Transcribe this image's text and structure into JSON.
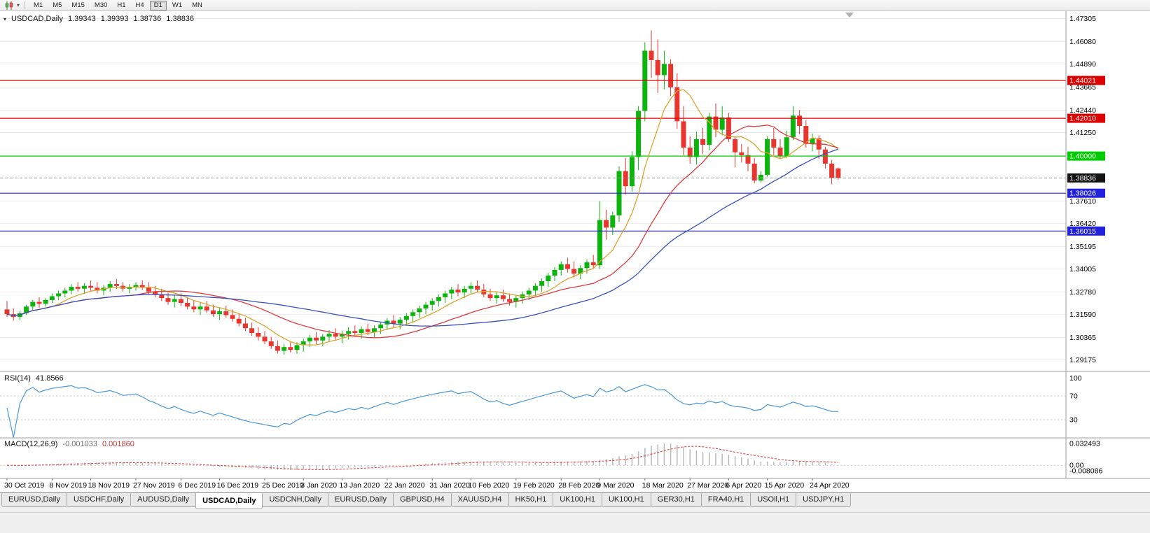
{
  "toolbar": {
    "timeframes": [
      "M1",
      "M5",
      "M15",
      "M30",
      "H1",
      "H4",
      "D1",
      "W1",
      "MN"
    ],
    "active": "D1"
  },
  "chart_header": {
    "symbol_timeframe": "USDCAD,Daily",
    "open": "1.39343",
    "high": "1.39393",
    "low": "1.38736",
    "close": "1.38836"
  },
  "chart_data": {
    "type": "candlestick",
    "symbol": "USDCAD",
    "timeframe": "Daily",
    "ylim": [
      1.28555,
      1.477
    ],
    "colors": {
      "up": "#0db40d",
      "down": "#e8352e",
      "background": "#ffffff",
      "grid": "#ececec"
    },
    "price_ticks": [
      1.47305,
      1.4608,
      1.4489,
      1.43665,
      1.4244,
      1.4125,
      1.3761,
      1.3642,
      1.35195,
      1.34005,
      1.3278,
      1.3159,
      1.30365,
      1.29175
    ],
    "hlines": [
      {
        "price": 1.44021,
        "color": "#dd0000"
      },
      {
        "price": 1.4201,
        "color": "#dd0000"
      },
      {
        "price": 1.4,
        "color": "#00cc00"
      },
      {
        "price": 1.38026,
        "color": "#2222dd"
      },
      {
        "price": 1.36015,
        "color": "#2222dd"
      }
    ],
    "current_price": {
      "price": 1.38836,
      "box_color": "#141414"
    },
    "moving_averages": [
      {
        "period": 8,
        "color": "#d9a62e"
      },
      {
        "period": 21,
        "color": "#dd3b3b"
      },
      {
        "period": 40,
        "color": "#3850c0"
      }
    ],
    "date_labels": [
      [
        0,
        "30 Oct 2019"
      ],
      [
        7,
        "8 Nov 2019"
      ],
      [
        13,
        "18 Nov 2019"
      ],
      [
        20,
        "27 Nov 2019"
      ],
      [
        27,
        "6 Dec 2019"
      ],
      [
        33,
        "16 Dec 2019"
      ],
      [
        40,
        "25 Dec 2019"
      ],
      [
        46,
        "3 Jan 2020"
      ],
      [
        52,
        "13 Jan 2020"
      ],
      [
        59,
        "22 Jan 2020"
      ],
      [
        66,
        "31 Jan 2020"
      ],
      [
        72,
        "10 Feb 2020"
      ],
      [
        79,
        "19 Feb 2020"
      ],
      [
        86,
        "28 Feb 2020"
      ],
      [
        92,
        "9 Mar 2020"
      ],
      [
        99,
        "18 Mar 2020"
      ],
      [
        106,
        "27 Mar 2020"
      ],
      [
        112,
        "6 Apr 2020"
      ],
      [
        118,
        "15 Apr 2020"
      ],
      [
        125,
        "24 Apr 2020"
      ]
    ],
    "candles": [
      [
        1.3185,
        1.323,
        1.3145,
        1.316
      ],
      [
        1.316,
        1.319,
        1.3125,
        1.3145
      ],
      [
        1.3145,
        1.3175,
        1.313,
        1.3165
      ],
      [
        1.3165,
        1.321,
        1.3155,
        1.32
      ],
      [
        1.32,
        1.3235,
        1.318,
        1.3225
      ],
      [
        1.3225,
        1.325,
        1.3195,
        1.3215
      ],
      [
        1.3215,
        1.3245,
        1.32,
        1.3235
      ],
      [
        1.3235,
        1.327,
        1.322,
        1.3255
      ],
      [
        1.3255,
        1.3285,
        1.3235,
        1.327
      ],
      [
        1.327,
        1.33,
        1.325,
        1.3285
      ],
      [
        1.3285,
        1.332,
        1.3265,
        1.3305
      ],
      [
        1.3305,
        1.333,
        1.328,
        1.3295
      ],
      [
        1.3295,
        1.3325,
        1.327,
        1.331
      ],
      [
        1.331,
        1.334,
        1.3285,
        1.33
      ],
      [
        1.33,
        1.333,
        1.327,
        1.3285
      ],
      [
        1.3285,
        1.3315,
        1.326,
        1.33
      ],
      [
        1.33,
        1.3335,
        1.328,
        1.332
      ],
      [
        1.332,
        1.3345,
        1.3295,
        1.331
      ],
      [
        1.331,
        1.333,
        1.328,
        1.3295
      ],
      [
        1.3295,
        1.332,
        1.327,
        1.3305
      ],
      [
        1.3305,
        1.333,
        1.3285,
        1.3315
      ],
      [
        1.3315,
        1.334,
        1.329,
        1.33
      ],
      [
        1.33,
        1.333,
        1.3265,
        1.328
      ],
      [
        1.328,
        1.331,
        1.325,
        1.3265
      ],
      [
        1.3265,
        1.3295,
        1.323,
        1.3245
      ],
      [
        1.3245,
        1.3275,
        1.321,
        1.3225
      ],
      [
        1.3225,
        1.326,
        1.3195,
        1.324
      ],
      [
        1.324,
        1.327,
        1.3205,
        1.322
      ],
      [
        1.322,
        1.325,
        1.3185,
        1.32
      ],
      [
        1.32,
        1.3235,
        1.317,
        1.3185
      ],
      [
        1.3185,
        1.322,
        1.3155,
        1.32
      ],
      [
        1.32,
        1.323,
        1.3165,
        1.318
      ],
      [
        1.318,
        1.321,
        1.3145,
        1.316
      ],
      [
        1.316,
        1.3195,
        1.313,
        1.3175
      ],
      [
        1.3175,
        1.3205,
        1.314,
        1.3155
      ],
      [
        1.3155,
        1.3185,
        1.312,
        1.3135
      ],
      [
        1.3135,
        1.3165,
        1.3095,
        1.311
      ],
      [
        1.311,
        1.314,
        1.307,
        1.3085
      ],
      [
        1.3085,
        1.3115,
        1.3045,
        1.306
      ],
      [
        1.306,
        1.309,
        1.302,
        1.304
      ],
      [
        1.304,
        1.307,
        1.3,
        1.3015
      ],
      [
        1.3015,
        1.304,
        1.2975,
        1.299
      ],
      [
        1.299,
        1.302,
        1.295,
        1.2965
      ],
      [
        1.2965,
        1.3,
        1.2945,
        1.2985
      ],
      [
        1.2985,
        1.3015,
        1.2955,
        1.297
      ],
      [
        1.297,
        1.301,
        1.295,
        1.2995
      ],
      [
        1.2995,
        1.303,
        1.296,
        1.3015
      ],
      [
        1.3015,
        1.305,
        1.2985,
        1.3035
      ],
      [
        1.3035,
        1.3065,
        1.3,
        1.302
      ],
      [
        1.302,
        1.3055,
        1.299,
        1.304
      ],
      [
        1.304,
        1.3075,
        1.301,
        1.3055
      ],
      [
        1.3055,
        1.3085,
        1.302,
        1.304
      ],
      [
        1.304,
        1.307,
        1.3005,
        1.3055
      ],
      [
        1.3055,
        1.309,
        1.3025,
        1.307
      ],
      [
        1.307,
        1.31,
        1.304,
        1.306
      ],
      [
        1.306,
        1.3095,
        1.303,
        1.308
      ],
      [
        1.308,
        1.311,
        1.305,
        1.3065
      ],
      [
        1.3065,
        1.31,
        1.3035,
        1.3085
      ],
      [
        1.3085,
        1.312,
        1.3055,
        1.3105
      ],
      [
        1.3105,
        1.314,
        1.3075,
        1.3125
      ],
      [
        1.3125,
        1.3155,
        1.309,
        1.311
      ],
      [
        1.311,
        1.3145,
        1.308,
        1.313
      ],
      [
        1.313,
        1.3165,
        1.31,
        1.315
      ],
      [
        1.315,
        1.3185,
        1.312,
        1.317
      ],
      [
        1.317,
        1.3205,
        1.314,
        1.319
      ],
      [
        1.319,
        1.3225,
        1.316,
        1.321
      ],
      [
        1.321,
        1.3245,
        1.318,
        1.323
      ],
      [
        1.323,
        1.3265,
        1.32,
        1.325
      ],
      [
        1.325,
        1.3285,
        1.322,
        1.327
      ],
      [
        1.327,
        1.3305,
        1.324,
        1.329
      ],
      [
        1.329,
        1.332,
        1.3255,
        1.3275
      ],
      [
        1.3275,
        1.331,
        1.3245,
        1.3295
      ],
      [
        1.3295,
        1.333,
        1.3265,
        1.331
      ],
      [
        1.331,
        1.334,
        1.3275,
        1.329
      ],
      [
        1.329,
        1.332,
        1.325,
        1.3265
      ],
      [
        1.3265,
        1.3295,
        1.323,
        1.3245
      ],
      [
        1.3245,
        1.328,
        1.3215,
        1.326
      ],
      [
        1.326,
        1.329,
        1.3225,
        1.324
      ],
      [
        1.324,
        1.327,
        1.3205,
        1.3225
      ],
      [
        1.3225,
        1.326,
        1.3195,
        1.3245
      ],
      [
        1.3245,
        1.328,
        1.3215,
        1.3265
      ],
      [
        1.3265,
        1.33,
        1.3235,
        1.3285
      ],
      [
        1.3285,
        1.3325,
        1.3255,
        1.331
      ],
      [
        1.331,
        1.335,
        1.328,
        1.3335
      ],
      [
        1.3335,
        1.338,
        1.3305,
        1.3365
      ],
      [
        1.3365,
        1.341,
        1.3335,
        1.3395
      ],
      [
        1.3395,
        1.344,
        1.3365,
        1.3425
      ],
      [
        1.3425,
        1.346,
        1.338,
        1.34
      ],
      [
        1.34,
        1.344,
        1.3355,
        1.3375
      ],
      [
        1.3375,
        1.342,
        1.3345,
        1.3405
      ],
      [
        1.3405,
        1.345,
        1.3375,
        1.3435
      ],
      [
        1.3435,
        1.3475,
        1.34,
        1.342
      ],
      [
        1.342,
        1.376,
        1.34,
        1.366
      ],
      [
        1.366,
        1.3715,
        1.3555,
        1.362
      ],
      [
        1.362,
        1.3705,
        1.358,
        1.3685
      ],
      [
        1.3685,
        1.3945,
        1.365,
        1.392
      ],
      [
        1.392,
        1.399,
        1.3795,
        1.384
      ],
      [
        1.384,
        1.4025,
        1.381,
        1.3995
      ],
      [
        1.3995,
        1.4265,
        1.3925,
        1.424
      ],
      [
        1.424,
        1.4605,
        1.4185,
        1.456
      ],
      [
        1.456,
        1.4668,
        1.4415,
        1.451
      ],
      [
        1.451,
        1.462,
        1.4335,
        1.443
      ],
      [
        1.443,
        1.456,
        1.4355,
        1.449
      ],
      [
        1.449,
        1.4515,
        1.432,
        1.4365
      ],
      [
        1.4365,
        1.444,
        1.4145,
        1.4185
      ],
      [
        1.4185,
        1.4265,
        1.4005,
        1.4045
      ],
      [
        1.4045,
        1.4105,
        1.396,
        1.3995
      ],
      [
        1.3995,
        1.413,
        1.3955,
        1.409
      ],
      [
        1.409,
        1.415,
        1.401,
        1.406
      ],
      [
        1.406,
        1.423,
        1.403,
        1.421
      ],
      [
        1.421,
        1.428,
        1.41,
        1.414
      ],
      [
        1.414,
        1.4265,
        1.411,
        1.4205
      ],
      [
        1.4205,
        1.423,
        1.4075,
        1.409
      ],
      [
        1.409,
        1.4105,
        1.394,
        1.402
      ],
      [
        1.402,
        1.4065,
        1.3965,
        1.4005
      ],
      [
        1.4005,
        1.405,
        1.392,
        1.396
      ],
      [
        1.396,
        1.399,
        1.3855,
        1.387
      ],
      [
        1.387,
        1.392,
        1.386,
        1.39
      ],
      [
        1.39,
        1.4105,
        1.389,
        1.409
      ],
      [
        1.409,
        1.415,
        1.4005,
        1.4045
      ],
      [
        1.4045,
        1.409,
        1.3985,
        1.4
      ],
      [
        1.4,
        1.4135,
        1.399,
        1.41
      ],
      [
        1.41,
        1.4265,
        1.4085,
        1.4215
      ],
      [
        1.4215,
        1.4245,
        1.4115,
        1.416
      ],
      [
        1.416,
        1.419,
        1.4045,
        1.4065
      ],
      [
        1.4065,
        1.412,
        1.4025,
        1.4095
      ],
      [
        1.4095,
        1.411,
        1.3985,
        1.4035
      ],
      [
        1.4035,
        1.405,
        1.3935,
        1.396
      ],
      [
        1.396,
        1.398,
        1.385,
        1.3885
      ],
      [
        1.39343,
        1.39393,
        1.38736,
        1.38836
      ]
    ],
    "indicators": {
      "rsi": {
        "label": "RSI(14)",
        "value": "41.8566",
        "period": 14,
        "levels": [
          100,
          70,
          30
        ],
        "color": "#4a97d9"
      },
      "macd": {
        "label": "MACD(12,26,9)",
        "value_main": "-0.001033",
        "value_signal": "0.001860",
        "fast": 12,
        "slow": 26,
        "signal": 9,
        "axis_labels": [
          "0.032493",
          "0.00",
          "-0.008086"
        ],
        "axis_values": [
          0.032493,
          0,
          -0.008086
        ],
        "histogram_color": "#b8b8b8",
        "signal_color": "#e04545"
      }
    }
  },
  "tabs": {
    "items": [
      "EURUSD,Daily",
      "USDCHF,Daily",
      "AUDUSD,Daily",
      "USDCAD,Daily",
      "USDCNH,Daily",
      "EURUSD,Daily",
      "GBPUSD,H4",
      "XAUUSD,H4",
      "HK50,H1",
      "UK100,H1",
      "UK100,H1",
      "GER30,H1",
      "FRA40,H1",
      "USOil,H1",
      "USDJPY,H1"
    ],
    "active_index": 3
  }
}
